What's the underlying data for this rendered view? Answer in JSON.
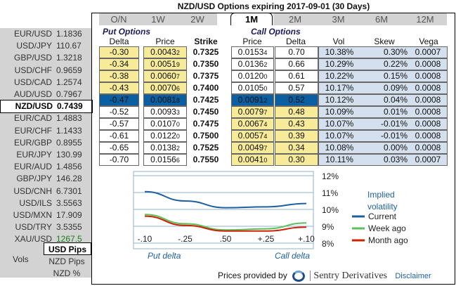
{
  "title": "NZD/USD Options expiring 2017-09-01 (30 Days)",
  "pairs": [
    {
      "name": "EUR/USD",
      "value": "1.1836"
    },
    {
      "name": "USD/JPY",
      "value": "110.67"
    },
    {
      "name": "GBP/USD",
      "value": "1.3218"
    },
    {
      "name": "USD/CHF",
      "value": "0.9659"
    },
    {
      "name": "USD/CAD",
      "value": "1.2574"
    },
    {
      "name": "AUD/USD",
      "value": "0.7967"
    },
    {
      "name": "NZD/USD",
      "value": "0.7439",
      "selected": true
    },
    {
      "name": "EUR/CAD",
      "value": "1.4883"
    },
    {
      "name": "EUR/CHF",
      "value": "1.1433"
    },
    {
      "name": "EUR/GBP",
      "value": "0.8955"
    },
    {
      "name": "EUR/JPY",
      "value": "130.99"
    },
    {
      "name": "EUR/AUD",
      "value": "1.4856"
    },
    {
      "name": "GBP/JPY",
      "value": "146.28"
    },
    {
      "name": "USD/CNH",
      "value": "6.7301"
    },
    {
      "name": "USD/ILS",
      "value": "3.5563"
    },
    {
      "name": "USD/MXN",
      "value": "17.909"
    },
    {
      "name": "USD/TRY",
      "value": "3.5355"
    },
    {
      "name": "XAU/USD",
      "value": "1267.5",
      "color": "#1a7a1a"
    }
  ],
  "units": {
    "vols_label": "Vols",
    "options": [
      "USD Pips",
      "NZD Pips",
      "NZD %"
    ],
    "selected": "USD Pips"
  },
  "tabs": [
    "O/N",
    "1W",
    "2W",
    "1M",
    "2M",
    "3M",
    "6M",
    "12M"
  ],
  "active_tab": "1M",
  "table": {
    "put_title": "Put Options",
    "call_title": "Call Options",
    "headers": [
      "Delta",
      "Price",
      "Strike",
      "Price",
      "Delta",
      "Vol",
      "Skew",
      "Vega"
    ],
    "rows": [
      {
        "put_delta": "-0.30",
        "put_price": "0.0043",
        "put_sub": "2",
        "strike": "0.7325",
        "call_price": "0.0153",
        "call_sub": "4",
        "call_delta": "0.70",
        "vol": "10.38%",
        "skew": "0.30%",
        "vega": "0.0007"
      },
      {
        "put_delta": "-0.34",
        "put_price": "0.0051",
        "put_sub": "9",
        "strike": "0.7350",
        "call_price": "0.0136",
        "call_sub": "2",
        "call_delta": "0.66",
        "vol": "10.29%",
        "skew": "0.22%",
        "vega": "0.0008"
      },
      {
        "put_delta": "-0.38",
        "put_price": "0.0060",
        "put_sub": "7",
        "strike": "0.7375",
        "call_price": "0.0120",
        "call_sub": "0",
        "call_delta": "0.61",
        "vol": "10.22%",
        "skew": "0.15%",
        "vega": "0.0008"
      },
      {
        "put_delta": "-0.43",
        "put_price": "0.0070",
        "put_sub": "6",
        "strike": "0.7400",
        "call_price": "0.0105",
        "call_sub": "0",
        "call_delta": "0.57",
        "vol": "10.17%",
        "skew": "0.09%",
        "vega": "0.0008"
      },
      {
        "put_delta": "-0.47",
        "put_price": "0.0081",
        "put_sub": "8",
        "strike": "0.7425",
        "call_price": "0.0091",
        "call_sub": "2",
        "call_delta": "0.52",
        "vol": "10.12%",
        "skew": "0.04%",
        "vega": "0.0008"
      },
      {
        "put_delta": "-0.52",
        "put_price": "0.0093",
        "put_sub": "3",
        "strike": "0.7450",
        "call_price": "0.0079",
        "call_sub": "7",
        "call_delta": "0.48",
        "vol": "10.09%",
        "skew": "0.01%",
        "vega": "0.0008"
      },
      {
        "put_delta": "-0.57",
        "put_price": "0.0107",
        "put_sub": "0",
        "strike": "0.7475",
        "call_price": "0.0067",
        "call_sub": "4",
        "call_delta": "0.43",
        "vol": "10.07%",
        "skew": "-0.01%",
        "vega": "0.0008"
      },
      {
        "put_delta": "-0.61",
        "put_price": "0.0122",
        "put_sub": "0",
        "strike": "0.7500",
        "call_price": "0.0057",
        "call_sub": "4",
        "call_delta": "0.39",
        "vol": "10.07%",
        "skew": "-0.01%",
        "vega": "0.0008"
      },
      {
        "put_delta": "-0.65",
        "put_price": "0.0138",
        "put_sub": "2",
        "strike": "0.7525",
        "call_price": "0.0049",
        "call_sub": "7",
        "call_delta": "0.34",
        "vol": "10.08%",
        "skew": "0.00%",
        "vega": "0.0008"
      },
      {
        "put_delta": "-0.70",
        "put_price": "0.0156",
        "put_sub": "6",
        "strike": "0.7550",
        "call_price": "0.0041",
        "call_sub": "0",
        "call_delta": "0.30",
        "vol": "10.11%",
        "skew": "0.03%",
        "vega": "0.0007"
      }
    ]
  },
  "chart_data": {
    "type": "line",
    "categories": [
      "-.10",
      "-.25",
      ".50",
      "+.25",
      "+.10"
    ],
    "x_left_label": "Put delta",
    "x_right_label": "Call delta",
    "ylabel": "Implied volatility",
    "yticks": [
      "12%",
      "11%",
      "10%",
      "9%",
      "8%"
    ],
    "ylim": [
      8,
      12
    ],
    "grid": true,
    "legend": "right",
    "series": [
      {
        "name": "Current",
        "color": "#1f5fa0",
        "values": [
          11.05,
          10.5,
          10.1,
          10.15,
          10.35
        ]
      },
      {
        "name": "Week ago",
        "color": "#5cc05c",
        "values": [
          9.7,
          9.15,
          8.78,
          8.85,
          9.2
        ]
      },
      {
        "name": "Month ago",
        "color": "#cc2200",
        "values": [
          9.6,
          9.05,
          8.72,
          8.72,
          8.95
        ]
      }
    ]
  },
  "footer": {
    "provided_by": "Prices provided by",
    "brand": "Sentry Derivatives",
    "disclaimer": "Disclaimer"
  }
}
